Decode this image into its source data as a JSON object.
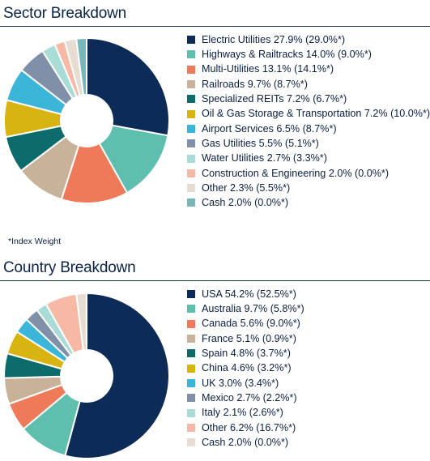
{
  "footnote": "*Index Weight",
  "chart_data": [
    {
      "type": "pie",
      "title": "Sector Breakdown",
      "donut": true,
      "legend_position": "right",
      "categories": [
        "Electric Utilities",
        "Highways & Railtracks",
        "Multi-Utilities",
        "Railroads",
        "Specialized REITs",
        "Oil & Gas Storage & Transportation",
        "Airport Services",
        "Gas Utilities",
        "Water Utilities",
        "Construction & Engineering",
        "Other",
        "Cash"
      ],
      "values": [
        27.9,
        14.0,
        13.1,
        9.7,
        7.2,
        7.2,
        6.5,
        5.5,
        2.7,
        2.0,
        2.3,
        2.0
      ],
      "index_values": [
        29.0,
        9.0,
        14.1,
        8.7,
        6.7,
        10.0,
        8.7,
        5.1,
        3.3,
        0.0,
        5.5,
        0.0
      ],
      "colors": [
        "#0c2b57",
        "#5fbfae",
        "#ee7a5a",
        "#c9b29a",
        "#0c6b6b",
        "#d8b410",
        "#3cb6d8",
        "#7f90a8",
        "#a9dcd6",
        "#f6b9a6",
        "#e7dcd1",
        "#79b6b9"
      ],
      "legend": [
        "Electric Utilities 27.9% (29.0%*)",
        "Highways & Railtracks 14.0% (9.0%*)",
        "Multi-Utilities 13.1% (14.1%*)",
        "Railroads 9.7% (8.7%*)",
        "Specialized REITs 7.2% (6.7%*)",
        "Oil & Gas Storage & Transportation 7.2% (10.0%*)",
        "Airport Services 6.5% (8.7%*)",
        "Gas Utilities 5.5% (5.1%*)",
        "Water Utilities 2.7% (3.3%*)",
        "Construction & Engineering 2.0% (0.0%*)",
        "Other 2.3% (5.5%*)",
        "Cash 2.0% (0.0%*)"
      ]
    },
    {
      "type": "pie",
      "title": "Country Breakdown",
      "donut": true,
      "legend_position": "right",
      "categories": [
        "USA",
        "Australia",
        "Canada",
        "France",
        "Spain",
        "China",
        "UK",
        "Mexico",
        "Italy",
        "Other",
        "Cash"
      ],
      "values": [
        54.2,
        9.7,
        5.6,
        5.1,
        4.8,
        4.6,
        3.0,
        2.7,
        2.1,
        6.2,
        2.0
      ],
      "index_values": [
        52.5,
        5.8,
        9.0,
        0.9,
        3.7,
        3.2,
        3.4,
        2.2,
        2.6,
        16.7,
        0.0
      ],
      "colors": [
        "#0c2b57",
        "#5fbfae",
        "#ee7a5a",
        "#c9b29a",
        "#0c6b6b",
        "#d8b410",
        "#3cb6d8",
        "#7f90a8",
        "#a9dcd6",
        "#f6b9a6",
        "#e7dcd1"
      ],
      "legend": [
        "USA 54.2% (52.5%*)",
        "Australia 9.7% (5.8%*)",
        "Canada 5.6% (9.0%*)",
        "France 5.1% (0.9%*)",
        "Spain 4.8% (3.7%*)",
        "China 4.6% (3.2%*)",
        "UK 3.0% (3.4%*)",
        "Mexico 2.7% (2.2%*)",
        "Italy 2.1% (2.6%*)",
        "Other 6.2% (16.7%*)",
        "Cash 2.0% (0.0%*)"
      ]
    }
  ]
}
